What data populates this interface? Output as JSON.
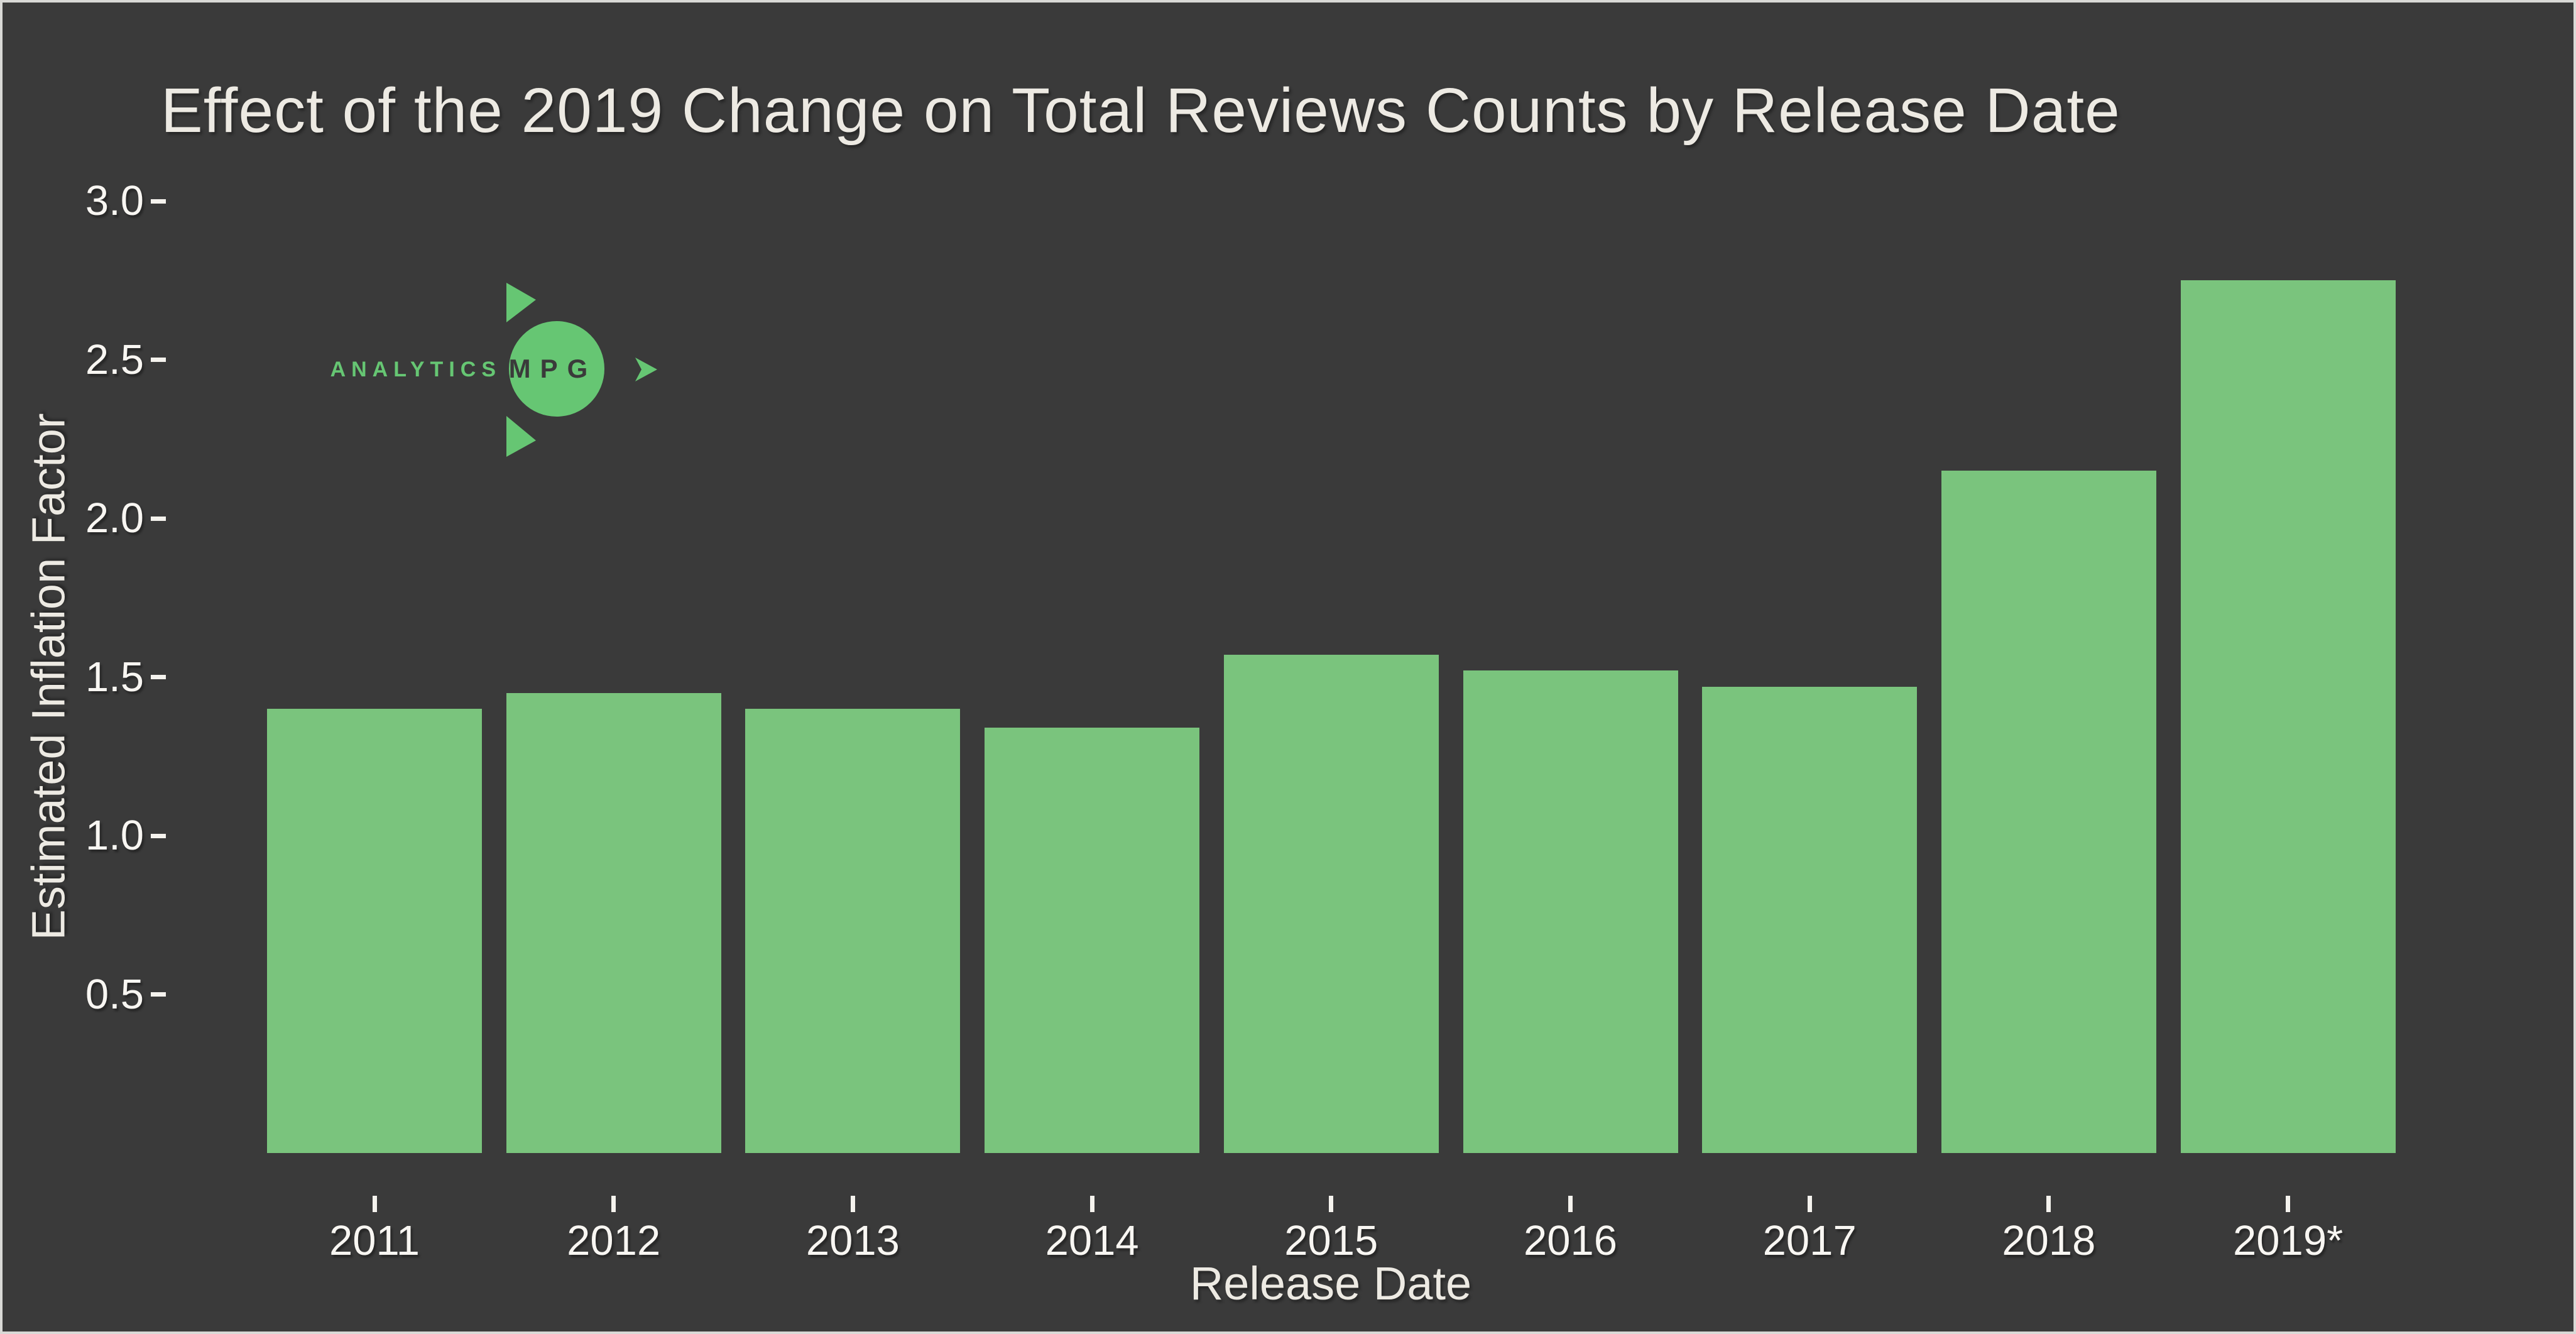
{
  "window": {
    "background_color": "#3a3a3a",
    "border_color": "#d9d9d6"
  },
  "logo": {
    "wordmark": "ANALYTICS",
    "badge_text": "MPG",
    "green": "#66c673",
    "dark": "#3a3a3a"
  },
  "chart_data": {
    "type": "bar",
    "title": "Effect of the 2019 Change on Total Reviews Counts by Release Date",
    "xlabel": "Release Date",
    "ylabel": "Estimated Inflation Factor",
    "categories": [
      "2011",
      "2012",
      "2013",
      "2014",
      "2015",
      "2016",
      "2017",
      "2018",
      "2019*"
    ],
    "values": [
      1.4,
      1.45,
      1.4,
      1.34,
      1.57,
      1.52,
      1.47,
      2.15,
      2.75
    ],
    "yticks": [
      "0.5",
      "1.0",
      "1.5",
      "2.0",
      "2.5",
      "3.0"
    ],
    "ylim": [
      0,
      3.1
    ],
    "bar_color": "#7ac47d",
    "tick_color": "#f8f6f2",
    "label_color": "#edeae3",
    "grid": false,
    "legend": "none"
  }
}
